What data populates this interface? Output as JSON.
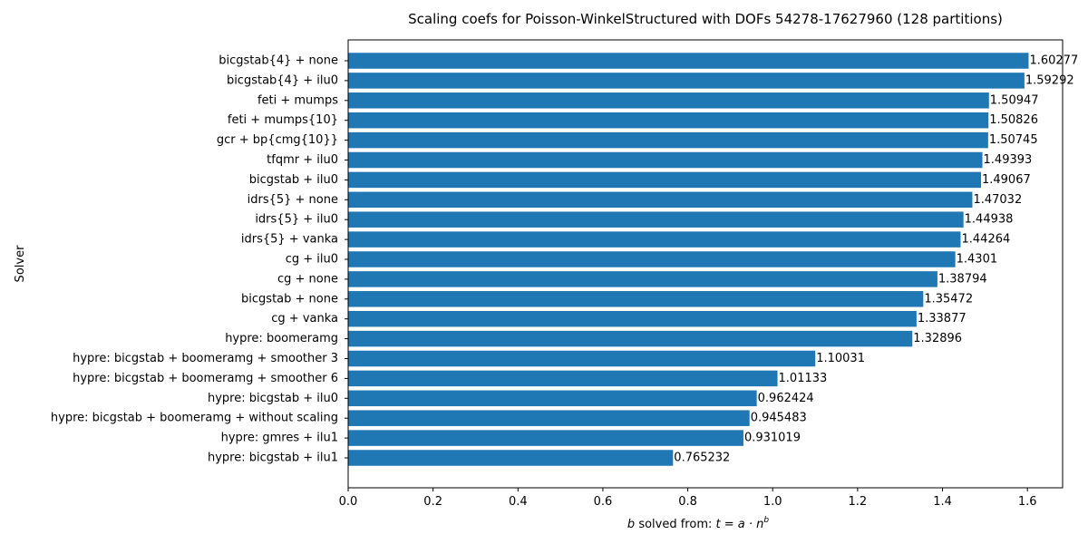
{
  "chart_data": {
    "type": "bar",
    "orientation": "horizontal",
    "title": "Scaling coefs for Poisson-WinkelStructured with DOFs 54278-17627960 (128 partitions)",
    "xlabel": "b solved from: t = a · n^b",
    "xlabel_parts": {
      "b": "b",
      "mid": " solved from: ",
      "eq": "t = a · n",
      "sup": "b"
    },
    "ylabel": "Solver",
    "xlim": [
      0,
      1.6829
    ],
    "xticks": [
      "0.0",
      "0.2",
      "0.4",
      "0.6",
      "0.8",
      "1.0",
      "1.2",
      "1.4",
      "1.6"
    ],
    "grid": false,
    "bar_color": "#1f77b4",
    "categories": [
      "bicgstab{4} + none",
      "bicgstab{4} + ilu0",
      "feti + mumps",
      "feti + mumps{10}",
      "gcr + bp{cmg{10}}",
      "tfqmr + ilu0",
      "bicgstab + ilu0",
      "idrs{5} + none",
      "idrs{5} + ilu0",
      "idrs{5} + vanka",
      "cg + ilu0",
      "cg + none",
      "bicgstab + none",
      "cg + vanka",
      "hypre: boomeramg",
      "hypre: bicgstab + boomeramg + smoother 3",
      "hypre: bicgstab + boomeramg + smoother 6",
      "hypre: bicgstab + ilu0",
      "hypre: bicgstab + boomeramg + without scaling",
      "hypre: gmres + ilu1",
      "hypre: bicgstab + ilu1"
    ],
    "values": [
      1.60277,
      1.59292,
      1.50947,
      1.50826,
      1.50745,
      1.49393,
      1.49067,
      1.47032,
      1.44938,
      1.44264,
      1.4301,
      1.38794,
      1.35472,
      1.33877,
      1.32896,
      1.10031,
      1.01133,
      0.962424,
      0.945483,
      0.931019,
      0.765232
    ],
    "value_labels": [
      "1.60277",
      "1.59292",
      "1.50947",
      "1.50826",
      "1.50745",
      "1.49393",
      "1.49067",
      "1.47032",
      "1.44938",
      "1.44264",
      "1.4301",
      "1.38794",
      "1.35472",
      "1.33877",
      "1.32896",
      "1.10031",
      "1.01133",
      "0.962424",
      "0.945483",
      "0.931019",
      "0.765232"
    ]
  }
}
